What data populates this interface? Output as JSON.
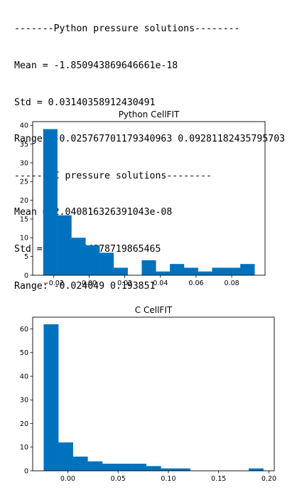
{
  "console_lines": [
    "-------Python pressure solutions--------",
    "Mean = -1.850943869646661e-18",
    "Std = 0.03140358912430491",
    "Range: -0.025767701179340963 0.09281182435795703",
    "-------C pressure solutions--------",
    "Mean = 2.040816326391043e-08",
    "Std = 0.036554878719865465",
    "Range: -0.024049 0.193851"
  ],
  "colors": {
    "bar": "#0072bd",
    "axis": "#000000",
    "text": "#000000"
  },
  "chart_data": [
    {
      "type": "bar",
      "title": "Python CellFIT",
      "xlabel": "",
      "ylabel": "",
      "bin_edges": [
        -0.0258,
        -0.0179,
        -0.01,
        -0.0021,
        0.0058,
        0.0137,
        0.0216,
        0.0295,
        0.0374,
        0.0453,
        0.0532,
        0.0611,
        0.069,
        0.0769,
        0.0848,
        0.0928
      ],
      "values": [
        39,
        16,
        10,
        8,
        6,
        2,
        0,
        4,
        1,
        3,
        2,
        1,
        2,
        2,
        3
      ],
      "xlim": [
        -0.0317,
        0.0987
      ],
      "ylim": [
        0,
        41
      ],
      "x_ticks": [
        -0.02,
        0.0,
        0.02,
        0.04,
        0.06,
        0.08
      ],
      "x_tick_labels": [
        "−0.02",
        "0.00",
        "0.02",
        "0.04",
        "0.06",
        "0.08"
      ],
      "y_ticks": [
        0,
        5,
        10,
        15,
        20,
        25,
        30,
        35,
        40
      ],
      "y_tick_labels": [
        "0",
        "5",
        "10",
        "15",
        "20",
        "25",
        "30",
        "35",
        "40"
      ]
    },
    {
      "type": "bar",
      "title": "C CellFIT",
      "xlabel": "",
      "ylabel": "",
      "bin_edges": [
        -0.024,
        -0.0094,
        0.0051,
        0.0197,
        0.0343,
        0.0488,
        0.0634,
        0.0779,
        0.0925,
        0.1071,
        0.1216,
        0.1362,
        0.1507,
        0.1653,
        0.1799,
        0.1944
      ],
      "values": [
        62,
        12,
        6,
        4,
        3,
        3,
        3,
        2,
        1,
        1,
        0,
        0,
        0,
        0,
        1
      ],
      "xlim": [
        -0.0349,
        0.2053
      ],
      "ylim": [
        0,
        65
      ],
      "x_ticks": [
        0.0,
        0.05,
        0.1,
        0.15,
        0.2
      ],
      "x_tick_labels": [
        "0.00",
        "0.05",
        "0.10",
        "0.15",
        "0.20"
      ],
      "y_ticks": [
        0,
        10,
        20,
        30,
        40,
        50,
        60
      ],
      "y_tick_labels": [
        "0",
        "10",
        "20",
        "30",
        "40",
        "50",
        "60"
      ]
    }
  ]
}
